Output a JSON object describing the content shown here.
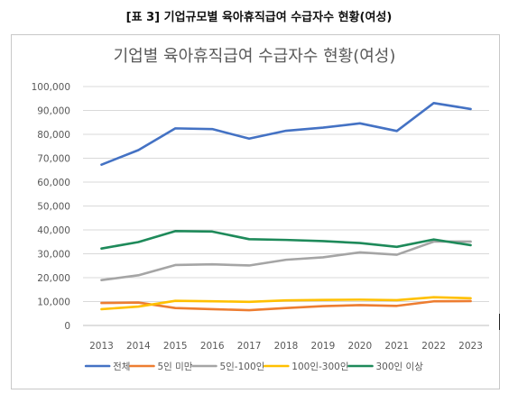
{
  "caption": "[표 3] 기업규모별 육아휴직급여 수급자수 현황(여성)",
  "chart_data": {
    "type": "line",
    "title": "기업별 육아휴직급여 수급자수 현황(여성)",
    "xlabel": "",
    "ylabel": "",
    "ylim": [
      0,
      100000
    ],
    "ytick_step": 10000,
    "ytick_labels": [
      "0",
      "10,000",
      "20,000",
      "30,000",
      "40,000",
      "50,000",
      "60,000",
      "70,000",
      "80,000",
      "90,000",
      "100,000"
    ],
    "grid": "horizontal",
    "legend_position": "bottom",
    "categories": [
      "2013",
      "2014",
      "2015",
      "2016",
      "2017",
      "2018",
      "2019",
      "2020",
      "2021",
      "2022",
      "2023"
    ],
    "series": [
      {
        "name": "전체",
        "color": "#4472C4",
        "values": [
          67300,
          73400,
          82500,
          82200,
          78200,
          81500,
          82800,
          84600,
          81400,
          93100,
          90600
        ]
      },
      {
        "name": "5인 미만",
        "color": "#ED7D31",
        "values": [
          9400,
          9600,
          7300,
          6800,
          6400,
          7300,
          8100,
          8500,
          8200,
          10100,
          10200
        ]
      },
      {
        "name": "5인-100인",
        "color": "#A5A5A5",
        "values": [
          19000,
          21000,
          25300,
          25600,
          25100,
          27500,
          28500,
          30600,
          29600,
          35100,
          35100
        ]
      },
      {
        "name": "100인-300인",
        "color": "#FFC000",
        "values": [
          6800,
          7900,
          10300,
          10100,
          9900,
          10500,
          10700,
          10800,
          10600,
          11800,
          11400
        ]
      },
      {
        "name": "300인 이상",
        "color": "#1E8A5A",
        "values": [
          32200,
          34900,
          39500,
          39300,
          36100,
          35800,
          35300,
          34500,
          32900,
          36000,
          33600
        ]
      }
    ]
  }
}
